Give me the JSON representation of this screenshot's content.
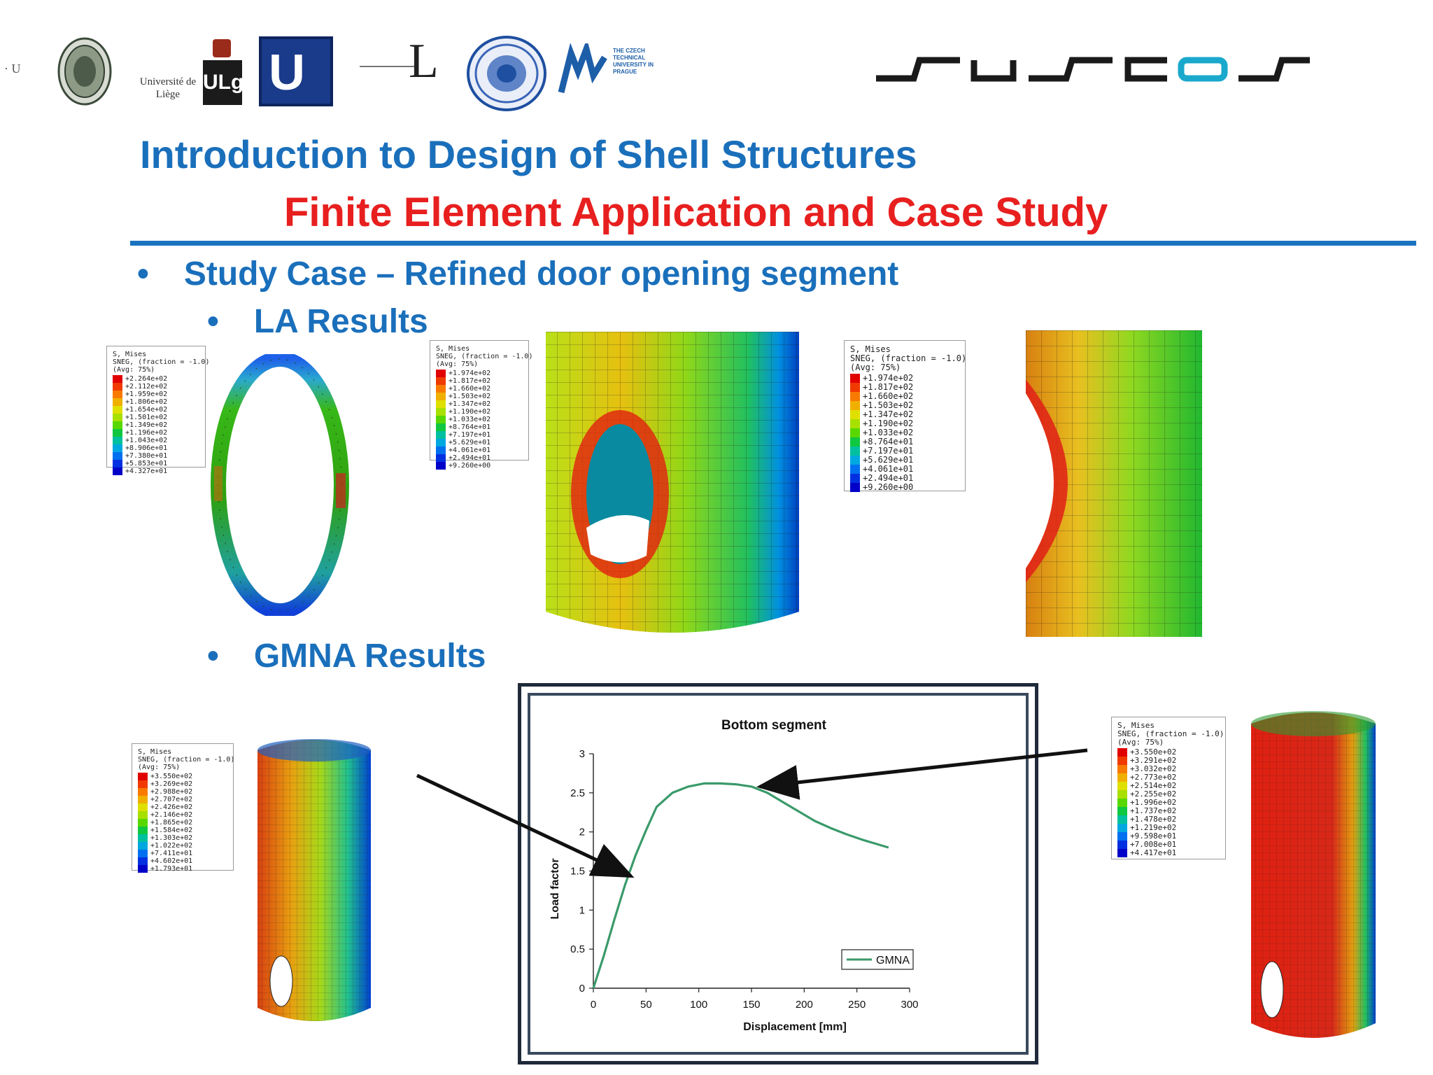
{
  "header": {
    "logos": [
      {
        "name": "u-fragment-logo",
        "text": "· U"
      },
      {
        "name": "seal-logo-1",
        "text": ""
      },
      {
        "name": "universite-de-liege-logo",
        "text": "Université de Liège"
      },
      {
        "name": "ulg-logo",
        "text": "ULg"
      },
      {
        "name": "u-logo",
        "text": "U"
      },
      {
        "name": "l-logo",
        "text": "L"
      },
      {
        "name": "seal-logo-2",
        "text": ""
      },
      {
        "name": "czech-technical-university-logo",
        "text": "THE CZECH TECHNICAL UNIVERSITY IN PRAGUE"
      }
    ],
    "suscos_logo": "suscos"
  },
  "title": "Introduction to Design of Shell Structures",
  "subtitle": "Finite Element Application and Case Study",
  "bullets": {
    "study_case": "Study Case – Refined door opening segment",
    "la_results": "LA Results",
    "gmna_results": "GMNA Results"
  },
  "legends": {
    "header": "S, Mises\nSNEG, (fraction = -1.0)\n(Avg: 75%)",
    "la_ring": "+2.264e+02\n+2.112e+02\n+1.959e+02\n+1.806e+02\n+1.654e+02\n+1.501e+02\n+1.349e+02\n+1.196e+02\n+1.043e+02\n+8.906e+01\n+7.380e+01\n+5.853e+01\n+4.327e+01",
    "la_cylinder": "+1.974e+02\n+1.817e+02\n+1.660e+02\n+1.503e+02\n+1.347e+02\n+1.190e+02\n+1.033e+02\n+8.764e+01\n+7.197e+01\n+5.629e+01\n+4.061e+01\n+2.494e+01\n+9.260e+00",
    "la_detail": "+1.974e+02\n+1.817e+02\n+1.660e+02\n+1.503e+02\n+1.347e+02\n+1.190e+02\n+1.033e+02\n+8.764e+01\n+7.197e+01\n+5.629e+01\n+4.061e+01\n+2.494e+01\n+9.260e+00",
    "gmna_left": "+3.550e+02\n+3.269e+02\n+2.988e+02\n+2.707e+02\n+2.426e+02\n+2.146e+02\n+1.865e+02\n+1.584e+02\n+1.303e+02\n+1.022e+02\n+7.411e+01\n+4.602e+01\n+1.793e+01",
    "gmna_right": "+3.550e+02\n+3.291e+02\n+3.032e+02\n+2.773e+02\n+2.514e+02\n+2.255e+02\n+1.996e+02\n+1.737e+02\n+1.478e+02\n+1.219e+02\n+9.598e+01\n+7.008e+01\n+4.417e+01"
  },
  "colors": {
    "title_blue": "#1a6fbb",
    "subtitle_red": "#e81f1f",
    "rule_blue": "#1a73c1",
    "series_green": "#3a9a6a",
    "contour": [
      "#e00000",
      "#f03a00",
      "#f87a00",
      "#f0b000",
      "#e0e000",
      "#a8e000",
      "#58d800",
      "#10c840",
      "#00c0a0",
      "#00a8e0",
      "#0070f0",
      "#0030e0",
      "#0000c8"
    ]
  },
  "chart_data": {
    "type": "line",
    "title": "Bottom segment",
    "xlabel": "Displacement [mm]",
    "ylabel": "Load factor",
    "xlim": [
      0,
      300
    ],
    "ylim": [
      0,
      3
    ],
    "xticks": [
      "0",
      "50",
      "100",
      "150",
      "200",
      "250",
      "300"
    ],
    "yticks": [
      "0",
      "0.5",
      "1",
      "1.5",
      "2",
      "2.5",
      "3"
    ],
    "legend_position": "bottom-right",
    "series": [
      {
        "name": "GMNA",
        "x": [
          0,
          10,
          20,
          30,
          40,
          50,
          60,
          75,
          90,
          105,
          120,
          135,
          150,
          165,
          180,
          195,
          210,
          225,
          240,
          255,
          270,
          280
        ],
        "y": [
          0,
          0.42,
          0.88,
          1.32,
          1.7,
          2.02,
          2.32,
          2.5,
          2.58,
          2.62,
          2.62,
          2.61,
          2.58,
          2.5,
          2.38,
          2.26,
          2.14,
          2.05,
          1.97,
          1.9,
          1.84,
          1.8
        ]
      }
    ]
  }
}
